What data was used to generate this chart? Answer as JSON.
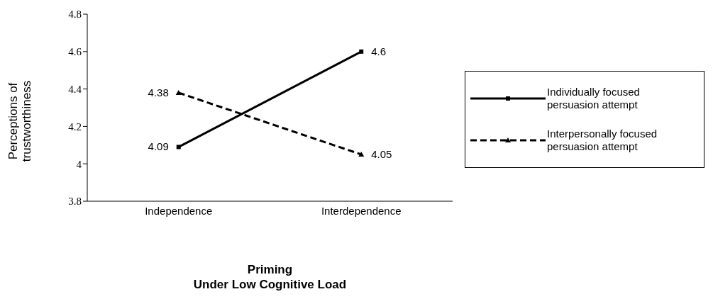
{
  "chart_data": {
    "type": "line",
    "xlabel": "Priming\nUnder Low Cognitive Load",
    "ylabel": "Perceptions of\ntrustworthiness",
    "categories": [
      "Independence",
      "Interdependence"
    ],
    "series": [
      {
        "name": "Individually focused\npersuasion attempt",
        "color": "#000000",
        "values": [
          4.09,
          4.6
        ],
        "marker": "square",
        "line_style": "solid"
      },
      {
        "name": "Interpersonally focused\npersuasion attempt",
        "color": "#000000",
        "values": [
          4.38,
          4.05
        ],
        "marker": "triangle",
        "line_style": "dashed"
      }
    ],
    "ylim": [
      3.8,
      4.8
    ],
    "yticks": [
      3.8,
      4,
      4.2,
      4.4,
      4.6,
      4.8
    ],
    "legend": "right",
    "data_labels": true
  }
}
